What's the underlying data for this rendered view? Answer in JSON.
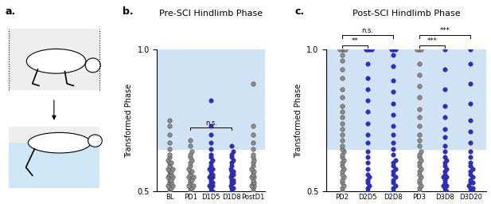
{
  "diagram": {
    "label": "a."
  },
  "chart_data": [
    {
      "type": "strip",
      "label": "b.",
      "title": "Pre-SCI Hindlimb Phase",
      "y_label": "Transformed Phase",
      "categories": [
        "BL",
        "PD1",
        "D1D5",
        "D1D8",
        "PostD1"
      ],
      "colors": [
        "#8c8c8c",
        "#8c8c8c",
        "#2b2bd9",
        "#2b2bd9",
        "#8c8c8c"
      ],
      "values": [
        [
          0.5,
          0.51,
          0.51,
          0.52,
          0.52,
          0.53,
          0.53,
          0.54,
          0.54,
          0.55,
          0.55,
          0.56,
          0.56,
          0.57,
          0.57,
          0.58,
          0.58,
          0.59,
          0.6,
          0.6,
          0.61,
          0.62,
          0.63,
          0.65,
          0.67,
          0.7,
          0.73,
          0.75
        ],
        [
          0.5,
          0.51,
          0.51,
          0.52,
          0.52,
          0.53,
          0.54,
          0.54,
          0.55,
          0.55,
          0.56,
          0.57,
          0.57,
          0.58,
          0.59,
          0.6,
          0.61,
          0.62,
          0.63,
          0.64,
          0.66,
          0.68
        ],
        [
          0.5,
          0.5,
          0.51,
          0.52,
          0.52,
          0.53,
          0.53,
          0.54,
          0.55,
          0.55,
          0.56,
          0.56,
          0.57,
          0.58,
          0.58,
          0.59,
          0.6,
          0.61,
          0.62,
          0.63,
          0.65,
          0.67,
          0.7,
          0.73,
          0.82
        ],
        [
          0.5,
          0.51,
          0.51,
          0.52,
          0.53,
          0.53,
          0.54,
          0.54,
          0.55,
          0.56,
          0.56,
          0.57,
          0.57,
          0.58,
          0.59,
          0.6,
          0.61,
          0.62,
          0.63,
          0.64,
          0.66
        ],
        [
          0.5,
          0.51,
          0.52,
          0.52,
          0.53,
          0.53,
          0.54,
          0.55,
          0.55,
          0.56,
          0.57,
          0.57,
          0.58,
          0.59,
          0.6,
          0.61,
          0.62,
          0.63,
          0.65,
          0.67,
          0.7,
          0.73,
          0.88
        ]
      ],
      "ylim": [
        0.5,
        1.0
      ],
      "yticks": [
        0.5,
        1.0
      ],
      "shaded_range": [
        0.65,
        1.0
      ],
      "comparisons": [
        {
          "from": "PD1",
          "to": "D1D8",
          "label": "n.s."
        }
      ]
    },
    {
      "type": "strip",
      "label": "c.",
      "title": "Post-SCI Hindlimb Phase",
      "y_label": "Transformed Phase",
      "categories": [
        "PD2",
        "D2D5",
        "D2D8",
        "PD3",
        "D3D8",
        "D3D20"
      ],
      "colors": [
        "#8c8c8c",
        "#2b2bd9",
        "#2b2bd9",
        "#8c8c8c",
        "#2b2bd9",
        "#2b2bd9"
      ],
      "values": [
        [
          0.5,
          0.51,
          0.52,
          0.53,
          0.54,
          0.55,
          0.56,
          0.57,
          0.58,
          0.59,
          0.6,
          0.61,
          0.62,
          0.63,
          0.64,
          0.65,
          0.66,
          0.68,
          0.7,
          0.72,
          0.74,
          0.76,
          0.78,
          0.8,
          0.83,
          0.86,
          0.9,
          0.93,
          0.96,
          0.98,
          1.0,
          1.0,
          1.0,
          1.0
        ],
        [
          0.5,
          0.51,
          0.52,
          0.53,
          0.54,
          0.55,
          0.56,
          0.58,
          0.6,
          0.62,
          0.64,
          0.67,
          0.7,
          0.74,
          0.78,
          0.82,
          0.86,
          0.9,
          0.95,
          1.0,
          1.0,
          1.0,
          1.0
        ],
        [
          0.5,
          0.51,
          0.52,
          0.53,
          0.54,
          0.55,
          0.56,
          0.57,
          0.58,
          0.59,
          0.6,
          0.61,
          0.63,
          0.65,
          0.67,
          0.7,
          0.73,
          0.77,
          0.81,
          0.85,
          0.89,
          0.94,
          0.98,
          1.0,
          1.0,
          1.0
        ],
        [
          0.5,
          0.51,
          0.52,
          0.53,
          0.54,
          0.55,
          0.56,
          0.57,
          0.58,
          0.59,
          0.6,
          0.61,
          0.62,
          0.63,
          0.64,
          0.66,
          0.68,
          0.7,
          0.73,
          0.76,
          0.79,
          0.83,
          0.87,
          0.91,
          0.95,
          1.0,
          1.0,
          1.0
        ],
        [
          0.5,
          0.5,
          0.51,
          0.52,
          0.52,
          0.53,
          0.54,
          0.55,
          0.55,
          0.56,
          0.57,
          0.58,
          0.59,
          0.6,
          0.61,
          0.62,
          0.64,
          0.66,
          0.69,
          0.72,
          0.76,
          0.8,
          0.86,
          0.93,
          1.0
        ],
        [
          0.5,
          0.5,
          0.51,
          0.51,
          0.52,
          0.53,
          0.53,
          0.54,
          0.55,
          0.56,
          0.57,
          0.58,
          0.59,
          0.6,
          0.62,
          0.64,
          0.67,
          0.71,
          0.75,
          0.81,
          0.88,
          0.95,
          1.0
        ]
      ],
      "ylim": [
        0.5,
        1.0
      ],
      "yticks": [
        0.5,
        1.0
      ],
      "shaded_range": [
        0.65,
        1.0
      ],
      "comparisons": [
        {
          "from": "PD2",
          "to": "D2D5",
          "label": "**"
        },
        {
          "from": "PD2",
          "to": "D2D8",
          "label": "n.s."
        },
        {
          "from": "PD3",
          "to": "D3D8",
          "label": "***"
        },
        {
          "from": "PD3",
          "to": "D3D20",
          "label": "***"
        }
      ]
    }
  ]
}
